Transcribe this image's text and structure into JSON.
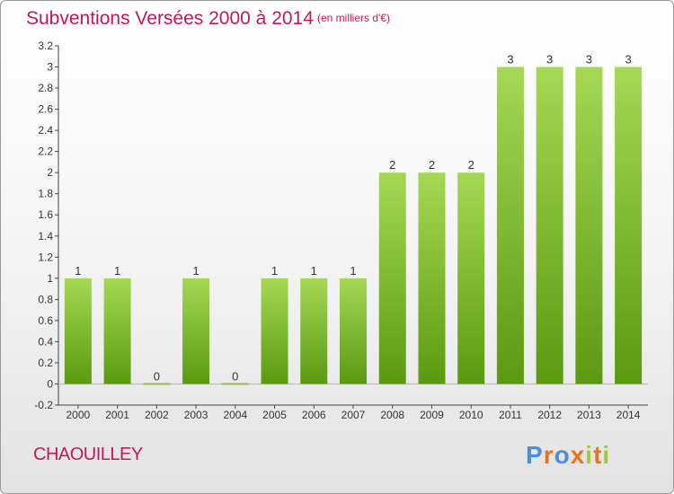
{
  "header": {
    "title": "Subventions Versées 2000 à 2014",
    "unit_note": "(en milliers d'€)"
  },
  "footer": {
    "commune": "CHAOUILLEY",
    "logo_text": "Proxiti",
    "logo_colors": [
      "#4a90d9",
      "#e8731c",
      "#4a90d9",
      "#e8731c",
      "#9ccc3c",
      "#e8731c",
      "#9ccc3c"
    ]
  },
  "chart_data": {
    "type": "bar",
    "categories": [
      "2000",
      "2001",
      "2002",
      "2003",
      "2004",
      "2005",
      "2006",
      "2007",
      "2008",
      "2009",
      "2010",
      "2011",
      "2012",
      "2013",
      "2014"
    ],
    "values": [
      1,
      1,
      0,
      1,
      0,
      1,
      1,
      1,
      2,
      2,
      2,
      3,
      3,
      3,
      3
    ],
    "data_labels": [
      "1",
      "1",
      "0",
      "1",
      "0",
      "1",
      "1",
      "1",
      "2",
      "2",
      "2",
      "3",
      "3",
      "3",
      "3"
    ],
    "ylim": [
      -0.2,
      3.2
    ],
    "yticks": [
      -0.2,
      0,
      0.2,
      0.4,
      0.6,
      0.8,
      1,
      1.2,
      1.4,
      1.6,
      1.8,
      2,
      2.2,
      2.4,
      2.6,
      2.8,
      3,
      3.2
    ],
    "ytick_labels": [
      "-0.2",
      "0",
      "0.2",
      "0.4",
      "0.6",
      "0.8",
      "1",
      "1.2",
      "1.4",
      "1.6",
      "1.8",
      "2",
      "2.2",
      "2.4",
      "2.6",
      "2.8",
      "3",
      "3.2"
    ],
    "grid": false,
    "colors": {
      "bar_top": "#a6d854",
      "bar_bottom": "#5a9a10",
      "zero_bar": "#8fbf4a"
    }
  }
}
